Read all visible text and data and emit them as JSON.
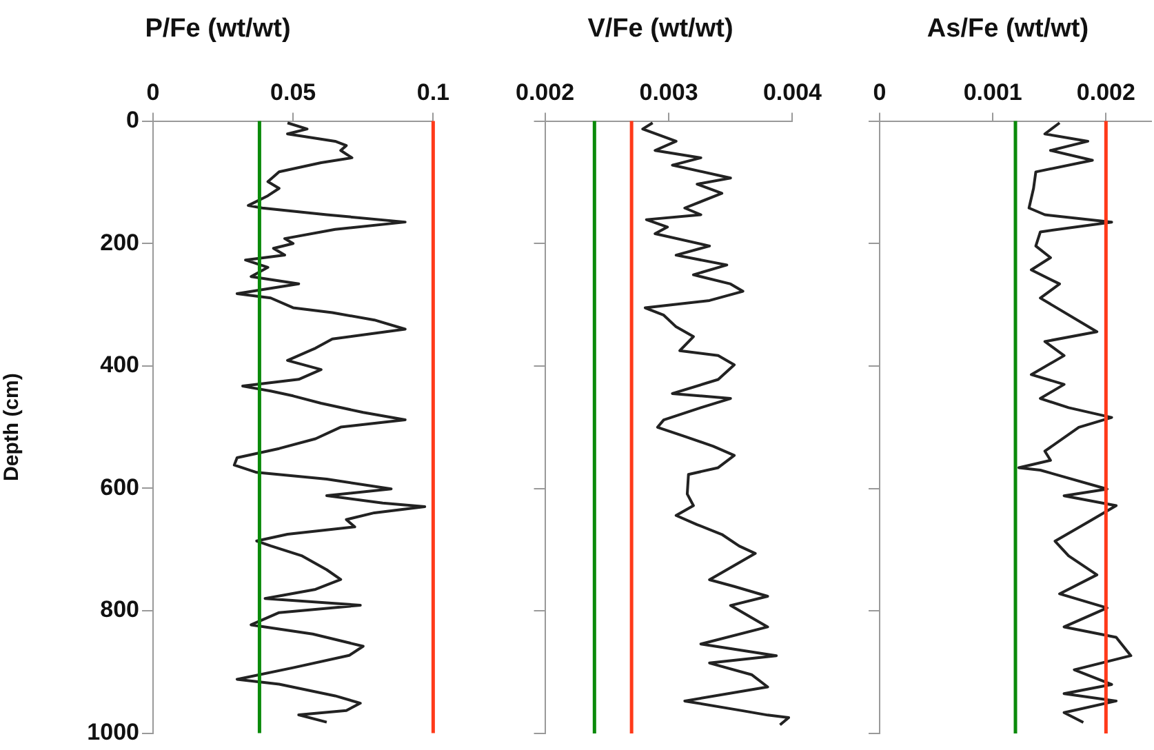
{
  "chart_data": [
    {
      "type": "line",
      "title": "P/Fe (wt/wt)",
      "ylabel": "Depth (cm)",
      "xlim": [
        0,
        0.1
      ],
      "xticks": [
        0,
        0.05,
        0.1
      ],
      "ylim": [
        1000,
        0
      ],
      "yticks": [
        0,
        200,
        400,
        600,
        800,
        1000
      ],
      "grid": false,
      "legend": false,
      "marker": "none",
      "ref_lines": [
        {
          "axis": "x",
          "value": 0.038,
          "color": "#0a8a0a"
        },
        {
          "axis": "x",
          "value": 0.1,
          "color": "#ff3a1a"
        }
      ],
      "series": [
        {
          "color": "#222222",
          "x": [
            0.048,
            0.055,
            0.048,
            0.065,
            0.069,
            0.067,
            0.071,
            0.06,
            0.045,
            0.041,
            0.045,
            0.041,
            0.034,
            0.039,
            0.062,
            0.09,
            0.065,
            0.047,
            0.05,
            0.043,
            0.047,
            0.033,
            0.041,
            0.035,
            0.052,
            0.03,
            0.042,
            0.05,
            0.064,
            0.079,
            0.09,
            0.064,
            0.058,
            0.048,
            0.06,
            0.052,
            0.032,
            0.042,
            0.05,
            0.06,
            0.075,
            0.09,
            0.067,
            0.058,
            0.045,
            0.03,
            0.029,
            0.037,
            0.062,
            0.085,
            0.062,
            0.082,
            0.097,
            0.079,
            0.069,
            0.072,
            0.048,
            0.037,
            0.042,
            0.053,
            0.062,
            0.067,
            0.058,
            0.04,
            0.074,
            0.045,
            0.035,
            0.057,
            0.075,
            0.07,
            0.05,
            0.03,
            0.045,
            0.065,
            0.074,
            0.069,
            0.052,
            0.062
          ],
          "values": [
            3,
            13,
            21,
            33,
            40,
            48,
            60,
            68,
            83,
            99,
            110,
            122,
            138,
            142,
            153,
            165,
            177,
            192,
            200,
            208,
            219,
            227,
            239,
            254,
            266,
            282,
            289,
            305,
            313,
            325,
            340,
            356,
            371,
            391,
            406,
            422,
            433,
            441,
            449,
            461,
            476,
            488,
            500,
            519,
            535,
            550,
            562,
            574,
            585,
            601,
            612,
            624,
            630,
            640,
            651,
            663,
            675,
            686,
            694,
            710,
            733,
            749,
            765,
            780,
            791,
            803,
            823,
            838,
            858,
            873,
            893,
            912,
            920,
            939,
            951,
            963,
            970,
            982
          ]
        }
      ]
    },
    {
      "type": "line",
      "title": "V/Fe (wt/wt)",
      "xlim": [
        0.002,
        0.004
      ],
      "xticks": [
        0.002,
        0.003,
        0.004
      ],
      "ylim": [
        1000,
        0
      ],
      "yticks": [
        0,
        200,
        400,
        600,
        800,
        1000
      ],
      "tick_labels": "x",
      "grid": false,
      "legend": false,
      "marker": "none",
      "ref_lines": [
        {
          "axis": "x",
          "value": 0.0024,
          "color": "#0a8a0a"
        },
        {
          "axis": "x",
          "value": 0.0027,
          "color": "#ff3a1a"
        }
      ],
      "series": [
        {
          "color": "#222222",
          "x": [
            0.00287,
            0.00279,
            0.00306,
            0.00289,
            0.00326,
            0.00303,
            0.0035,
            0.00323,
            0.00343,
            0.00313,
            0.00326,
            0.00282,
            0.00299,
            0.00289,
            0.00333,
            0.00306,
            0.00347,
            0.0032,
            0.0035,
            0.0036,
            0.00333,
            0.00281,
            0.00296,
            0.00306,
            0.0032,
            0.00309,
            0.0034,
            0.00353,
            0.0034,
            0.00303,
            0.0035,
            0.00326,
            0.00296,
            0.00291,
            0.00313,
            0.00336,
            0.00353,
            0.0034,
            0.00316,
            0.00315,
            0.0032,
            0.00306,
            0.00323,
            0.00343,
            0.00357,
            0.0037,
            0.00333,
            0.00353,
            0.0038,
            0.0035,
            0.00367,
            0.0038,
            0.00326,
            0.00387,
            0.00333,
            0.00367,
            0.0038,
            0.00313,
            0.0036,
            0.0038,
            0.00397,
            0.0039
          ],
          "values": [
            3,
            13,
            33,
            48,
            60,
            72,
            93,
            103,
            118,
            142,
            153,
            161,
            173,
            184,
            204,
            219,
            235,
            251,
            266,
            278,
            293,
            305,
            317,
            336,
            352,
            375,
            383,
            398,
            422,
            445,
            453,
            468,
            488,
            500,
            515,
            531,
            546,
            566,
            577,
            609,
            628,
            644,
            659,
            675,
            694,
            706,
            749,
            760,
            776,
            791,
            811,
            826,
            854,
            873,
            885,
            904,
            924,
            947,
            963,
            970,
            974,
            986
          ]
        }
      ]
    },
    {
      "type": "line",
      "title": "As/Fe (wt/wt)",
      "xlim": [
        0,
        0.0024
      ],
      "xticks": [
        0,
        0.001,
        0.002
      ],
      "ylim": [
        1000,
        0
      ],
      "yticks": [
        0,
        200,
        400,
        600,
        800,
        1000
      ],
      "tick_labels": "x",
      "grid": false,
      "legend": false,
      "marker": "none",
      "ref_lines": [
        {
          "axis": "x",
          "value": 0.0012,
          "color": "#0a8a0a"
        },
        {
          "axis": "x",
          "value": 0.002,
          "color": "#ff3a1a"
        }
      ],
      "series": [
        {
          "color": "#222222",
          "x": [
            0.00159,
            0.00146,
            0.00184,
            0.00151,
            0.00188,
            0.00138,
            0.00136,
            0.00132,
            0.00146,
            0.00205,
            0.00142,
            0.00138,
            0.00151,
            0.00134,
            0.00159,
            0.00142,
            0.00192,
            0.00146,
            0.00163,
            0.00134,
            0.00163,
            0.00142,
            0.00167,
            0.00205,
            0.00176,
            0.00146,
            0.00151,
            0.00123,
            0.00142,
            0.00201,
            0.00163,
            0.00209,
            0.00184,
            0.00155,
            0.00167,
            0.00192,
            0.00159,
            0.00201,
            0.00163,
            0.00209,
            0.00222,
            0.00172,
            0.00205,
            0.00163,
            0.00209,
            0.00163,
            0.0018
          ],
          "values": [
            3,
            21,
            33,
            48,
            64,
            83,
            110,
            142,
            153,
            165,
            181,
            204,
            223,
            243,
            266,
            289,
            344,
            360,
            383,
            414,
            430,
            453,
            468,
            484,
            500,
            539,
            554,
            566,
            570,
            601,
            612,
            628,
            655,
            686,
            710,
            741,
            772,
            795,
            826,
            843,
            873,
            896,
            920,
            935,
            947,
            966,
            982
          ]
        }
      ]
    }
  ]
}
